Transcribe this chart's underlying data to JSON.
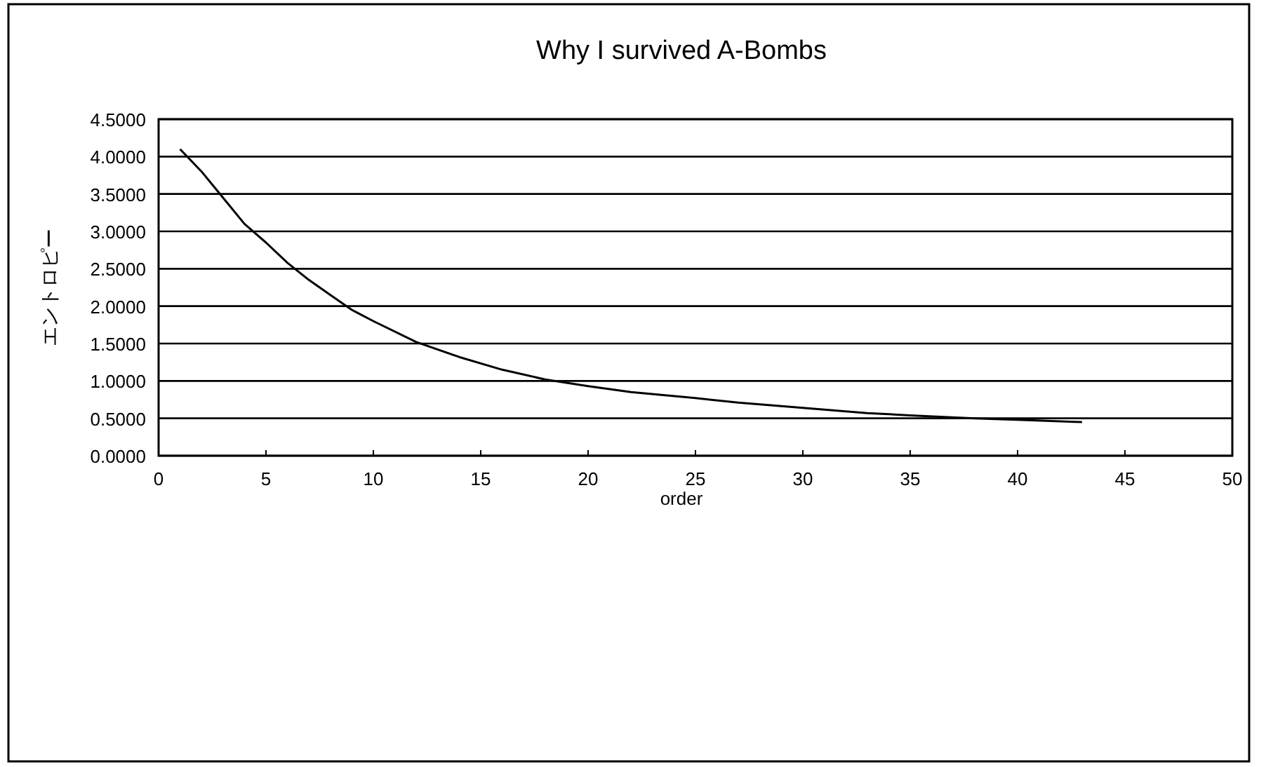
{
  "chart_data": {
    "type": "line",
    "title": "Why I survived A-Bombs",
    "xlabel": "order",
    "ylabel": "エントロピー",
    "x": [
      1,
      2,
      3,
      4,
      5,
      6,
      7,
      8,
      9,
      10,
      12,
      14,
      16,
      18,
      20,
      22,
      25,
      27,
      30,
      33,
      35,
      38,
      40,
      43
    ],
    "series": [
      {
        "color": "#000000",
        "values": [
          4.1,
          3.8,
          3.45,
          3.1,
          2.85,
          2.58,
          2.35,
          2.15,
          1.95,
          1.8,
          1.52,
          1.32,
          1.15,
          1.02,
          0.93,
          0.85,
          0.77,
          0.71,
          0.64,
          0.57,
          0.54,
          0.5,
          0.48,
          0.45
        ]
      }
    ],
    "xlim": [
      0,
      50
    ],
    "xticks": [
      0,
      5,
      10,
      15,
      20,
      25,
      30,
      35,
      40,
      45,
      50
    ],
    "ylim": [
      0,
      4.5
    ],
    "yticks": [
      {
        "value": 0,
        "label": "0.0000"
      },
      {
        "value": 0.5,
        "label": "0.5000"
      },
      {
        "value": 1,
        "label": "1.0000"
      },
      {
        "value": 1.5,
        "label": "1.5000"
      },
      {
        "value": 2,
        "label": "2.0000"
      },
      {
        "value": 2.5,
        "label": "2.5000"
      },
      {
        "value": 3,
        "label": "3.0000"
      },
      {
        "value": 3.5,
        "label": "3.5000"
      },
      {
        "value": 4,
        "label": "4.0000"
      },
      {
        "value": 4.5,
        "label": "4.5000"
      }
    ],
    "grid": "y",
    "marker": "none",
    "line_style": "solid"
  }
}
